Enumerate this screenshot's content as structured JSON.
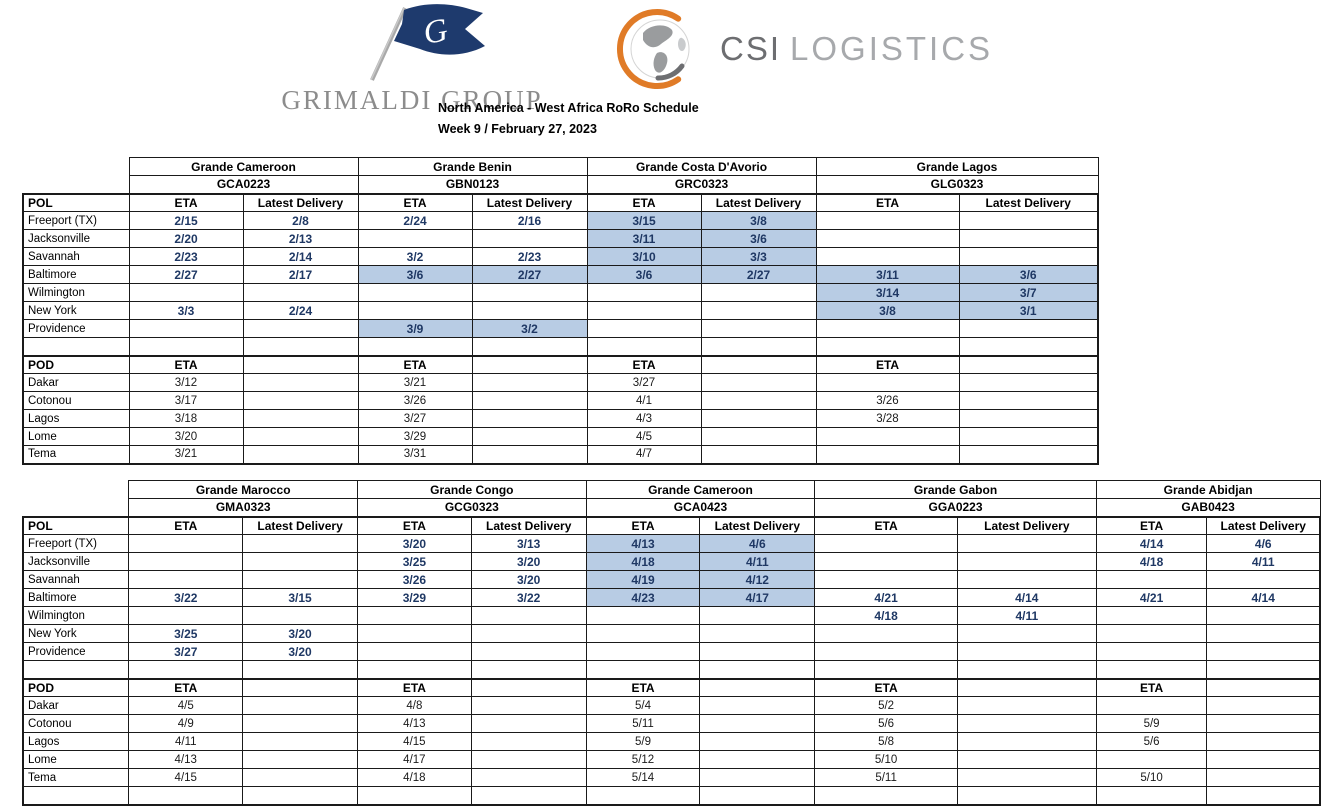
{
  "header": {
    "grimaldi_text": "GRIMALDI GROUP",
    "csi_text_primary": "CSI",
    "csi_text_secondary": "LOGISTICS",
    "title": "North America - West Africa RoRo Schedule",
    "subtitle": "Week 9 / February 27, 2023"
  },
  "labels": {
    "pol": "POL",
    "pod": "POD",
    "eta": "ETA",
    "latest_delivery": "Latest Delivery"
  },
  "colors": {
    "date_navy": "#1F3864",
    "highlight_blue": "#B8CCE4",
    "flag_navy": "#1e3a6d",
    "csi_orange": "#E07B27",
    "logo_gray": "#8c8c8c",
    "csi_dark_gray": "#6d6e71",
    "csi_light_gray": "#a7a9ac"
  },
  "tables": [
    {
      "vessels": [
        {
          "name": "Grande Cameroon",
          "voyage": "GCA0223"
        },
        {
          "name": "Grande Benin",
          "voyage": "GBN0123"
        },
        {
          "name": "Grande Costa D'Avorio",
          "voyage": "GRC0323"
        },
        {
          "name": "Grande Lagos",
          "voyage": "GLG0323"
        }
      ],
      "pol_rows": [
        {
          "port": "Freeport (TX)",
          "cells": [
            {
              "eta": "2/15",
              "ld": "2/8"
            },
            {
              "eta": "2/24",
              "ld": "2/16"
            },
            {
              "eta": "3/15",
              "ld": "3/8",
              "hl": true
            },
            {
              "eta": "",
              "ld": ""
            }
          ]
        },
        {
          "port": "Jacksonville",
          "cells": [
            {
              "eta": "2/20",
              "ld": "2/13"
            },
            {
              "eta": "",
              "ld": ""
            },
            {
              "eta": "3/11",
              "ld": "3/6",
              "hl": true
            },
            {
              "eta": "",
              "ld": ""
            }
          ]
        },
        {
          "port": "Savannah",
          "cells": [
            {
              "eta": "2/23",
              "ld": "2/14"
            },
            {
              "eta": "3/2",
              "ld": "2/23"
            },
            {
              "eta": "3/10",
              "ld": "3/3",
              "hl": true
            },
            {
              "eta": "",
              "ld": ""
            }
          ]
        },
        {
          "port": "Baltimore",
          "cells": [
            {
              "eta": "2/27",
              "ld": "2/17"
            },
            {
              "eta": "3/6",
              "ld": "2/27",
              "hl": true
            },
            {
              "eta": "3/6",
              "ld": "2/27",
              "hl": true
            },
            {
              "eta": "3/11",
              "ld": "3/6",
              "hl": true
            }
          ]
        },
        {
          "port": "Wilmington",
          "cells": [
            {
              "eta": "",
              "ld": ""
            },
            {
              "eta": "",
              "ld": ""
            },
            {
              "eta": "",
              "ld": ""
            },
            {
              "eta": "3/14",
              "ld": "3/7",
              "hl": true
            }
          ]
        },
        {
          "port": "New York",
          "cells": [
            {
              "eta": "3/3",
              "ld": "2/24"
            },
            {
              "eta": "",
              "ld": ""
            },
            {
              "eta": "",
              "ld": ""
            },
            {
              "eta": "3/8",
              "ld": "3/1",
              "hl": true
            }
          ]
        },
        {
          "port": "Providence",
          "cells": [
            {
              "eta": "",
              "ld": ""
            },
            {
              "eta": "3/9",
              "ld": "3/2",
              "hl": true
            },
            {
              "eta": "",
              "ld": ""
            },
            {
              "eta": "",
              "ld": ""
            }
          ]
        }
      ],
      "pod_rows": [
        {
          "port": "Dakar",
          "etas": [
            "3/12",
            "3/21",
            "3/27",
            ""
          ]
        },
        {
          "port": "Cotonou",
          "etas": [
            "3/17",
            "3/26",
            "4/1",
            "3/26"
          ]
        },
        {
          "port": "Lagos",
          "etas": [
            "3/18",
            "3/27",
            "4/3",
            "3/28"
          ]
        },
        {
          "port": "Lome",
          "etas": [
            "3/20",
            "3/29",
            "4/5",
            ""
          ]
        },
        {
          "port": "Tema",
          "etas": [
            "3/21",
            "3/31",
            "4/7",
            ""
          ]
        }
      ]
    },
    {
      "trailing_blank_row": true,
      "vessels": [
        {
          "name": "Grande Marocco",
          "voyage": "GMA0323"
        },
        {
          "name": "Grande Congo",
          "voyage": "GCG0323"
        },
        {
          "name": "Grande Cameroon",
          "voyage": "GCA0423"
        },
        {
          "name": "Grande Gabon",
          "voyage": "GGA0223"
        },
        {
          "name": "Grande Abidjan",
          "voyage": "GAB0423"
        }
      ],
      "pol_rows": [
        {
          "port": "Freeport (TX)",
          "cells": [
            {
              "eta": "",
              "ld": ""
            },
            {
              "eta": "3/20",
              "ld": "3/13"
            },
            {
              "eta": "4/13",
              "ld": "4/6",
              "hl": true
            },
            {
              "eta": "",
              "ld": ""
            },
            {
              "eta": "4/14",
              "ld": "4/6"
            }
          ]
        },
        {
          "port": "Jacksonville",
          "cells": [
            {
              "eta": "",
              "ld": ""
            },
            {
              "eta": "3/25",
              "ld": "3/20"
            },
            {
              "eta": "4/18",
              "ld": "4/11",
              "hl": true
            },
            {
              "eta": "",
              "ld": ""
            },
            {
              "eta": "4/18",
              "ld": "4/11"
            }
          ]
        },
        {
          "port": "Savannah",
          "cells": [
            {
              "eta": "",
              "ld": ""
            },
            {
              "eta": "3/26",
              "ld": "3/20"
            },
            {
              "eta": "4/19",
              "ld": "4/12",
              "hl": true
            },
            {
              "eta": "",
              "ld": ""
            },
            {
              "eta": "",
              "ld": ""
            }
          ]
        },
        {
          "port": "Baltimore",
          "cells": [
            {
              "eta": "3/22",
              "ld": "3/15"
            },
            {
              "eta": "3/29",
              "ld": "3/22"
            },
            {
              "eta": "4/23",
              "ld": "4/17",
              "hl": true
            },
            {
              "eta": "4/21",
              "ld": "4/14"
            },
            {
              "eta": "4/21",
              "ld": "4/14"
            }
          ]
        },
        {
          "port": "Wilmington",
          "cells": [
            {
              "eta": "",
              "ld": ""
            },
            {
              "eta": "",
              "ld": ""
            },
            {
              "eta": "",
              "ld": ""
            },
            {
              "eta": "4/18",
              "ld": "4/11"
            },
            {
              "eta": "",
              "ld": ""
            }
          ]
        },
        {
          "port": "New York",
          "cells": [
            {
              "eta": "3/25",
              "ld": "3/20"
            },
            {
              "eta": "",
              "ld": ""
            },
            {
              "eta": "",
              "ld": ""
            },
            {
              "eta": "",
              "ld": ""
            },
            {
              "eta": "",
              "ld": ""
            }
          ]
        },
        {
          "port": "Providence",
          "cells": [
            {
              "eta": "3/27",
              "ld": "3/20"
            },
            {
              "eta": "",
              "ld": ""
            },
            {
              "eta": "",
              "ld": ""
            },
            {
              "eta": "",
              "ld": ""
            },
            {
              "eta": "",
              "ld": ""
            }
          ]
        }
      ],
      "pod_rows": [
        {
          "port": "Dakar",
          "etas": [
            "4/5",
            "4/8",
            "5/4",
            "5/2",
            ""
          ]
        },
        {
          "port": "Cotonou",
          "etas": [
            "4/9",
            "4/13",
            "5/11",
            "5/6",
            "5/9"
          ]
        },
        {
          "port": "Lagos",
          "etas": [
            "4/11",
            "4/15",
            "5/9",
            "5/8",
            "5/6"
          ]
        },
        {
          "port": "Lome",
          "etas": [
            "4/13",
            "4/17",
            "5/12",
            "5/10",
            ""
          ]
        },
        {
          "port": "Tema",
          "etas": [
            "4/15",
            "4/18",
            "5/14",
            "5/11",
            "5/10"
          ]
        }
      ]
    }
  ]
}
